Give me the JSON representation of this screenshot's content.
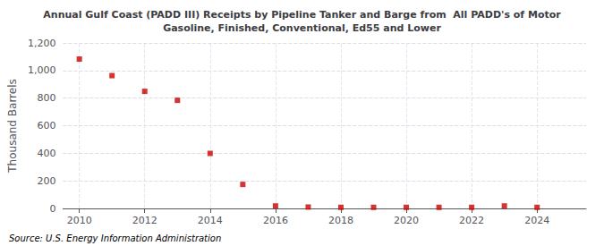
{
  "chart_data": {
    "type": "scatter",
    "title": "Annual Gulf Coast (PADD III) Receipts by Pipeline Tanker and Barge from  All PADD's of Motor\nGasoline, Finished, Conventional, Ed55 and Lower",
    "ylabel": "Thousand Barrels",
    "source": "Source: U.S. Energy Information Administration",
    "x": [
      2010,
      2011,
      2012,
      2013,
      2014,
      2015,
      2016,
      2017,
      2018,
      2019,
      2020,
      2021,
      2022,
      2023,
      2024
    ],
    "values": [
      1083,
      963,
      849,
      784,
      399,
      174,
      18,
      10,
      8,
      8,
      8,
      8,
      8,
      18,
      8
    ],
    "color": "#cc0000",
    "marker": "square",
    "xlim": [
      2009.5,
      2025.5
    ],
    "xticks": [
      2010,
      2012,
      2014,
      2016,
      2018,
      2020,
      2022,
      2024
    ],
    "ylim": [
      0,
      1200
    ],
    "yticks": [
      0,
      200,
      400,
      600,
      800,
      {
        "value": 1000,
        "label": "1,000"
      },
      {
        "value": 1200,
        "label": "1,200"
      }
    ],
    "grid": true
  }
}
